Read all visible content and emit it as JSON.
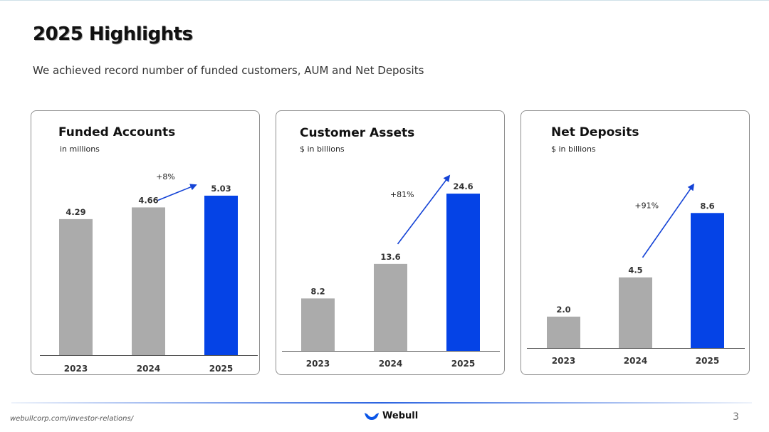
{
  "slide": {
    "title": "2025 Highlights",
    "subtitle": "We achieved record number of funded customers, AUM and Net Deposits",
    "footer_url": "webullcorp.com/investor-relations/",
    "brand": "Webull",
    "page_number": "3"
  },
  "colors": {
    "past_bar": "#ababab",
    "current_bar": "#0543e6",
    "arrow": "#1443d6"
  },
  "chart_data": [
    {
      "type": "bar",
      "title": "Funded Accounts",
      "unit_label": "in millions",
      "categories": [
        "2023",
        "2024",
        "2025"
      ],
      "values": [
        4.29,
        4.66,
        5.03
      ],
      "value_labels": [
        "4.29",
        "4.66",
        "5.03"
      ],
      "ylim": [
        0,
        5.5
      ],
      "growth_label": "+8%",
      "highlight_index": 2
    },
    {
      "type": "bar",
      "title": "Customer Assets",
      "unit_label": "$ in billions",
      "categories": [
        "2023",
        "2024",
        "2025"
      ],
      "values": [
        8.2,
        13.6,
        24.6
      ],
      "value_labels": [
        "8.2",
        "13.6",
        "24.6"
      ],
      "ylim": [
        0,
        26.5
      ],
      "growth_label": "+81%",
      "highlight_index": 2
    },
    {
      "type": "bar",
      "title": "Net Deposits",
      "unit_label": "$ in billions",
      "categories": [
        "2023",
        "2024",
        "2025"
      ],
      "values": [
        2.0,
        4.5,
        8.6
      ],
      "value_labels": [
        "2.0",
        "4.5",
        "8.6"
      ],
      "ylim": [
        0,
        10.2
      ],
      "growth_label": "+91%",
      "highlight_index": 2
    }
  ]
}
